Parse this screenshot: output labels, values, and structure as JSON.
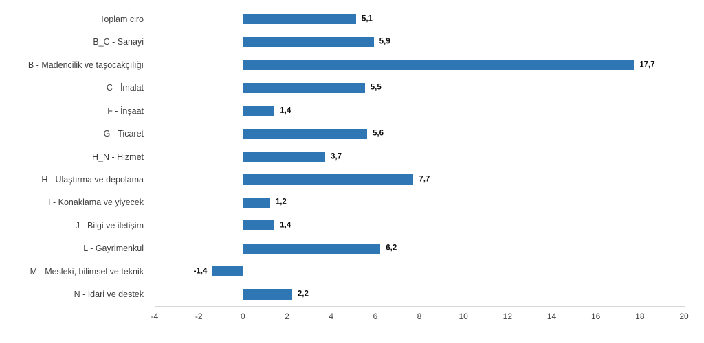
{
  "chart": {
    "background_color": "#ffffff",
    "bar_color": "#2f76b5",
    "axis_line_color": "#d9d9d9",
    "category_label_color": "#3f3f3f",
    "tick_label_color": "#454545",
    "value_label_color": "#0d0d0d"
  },
  "chart_data": {
    "type": "bar",
    "orientation": "horizontal",
    "title": "",
    "xlabel": "",
    "ylabel": "",
    "grid": false,
    "legend": false,
    "categories": [
      "Toplam ciro",
      "B_C - Sanayi",
      "B - Madencilik ve taşocakçılığı",
      "C - İmalat",
      "F - İnşaat",
      "G - Ticaret",
      "H_N - Hizmet",
      "H - Ulaştırma ve depolama",
      "I - Konaklama ve yiyecek",
      "J - Bilgi ve iletişim",
      "L - Gayrimenkul",
      "M - Mesleki, bilimsel ve teknik",
      "N - İdari ve destek"
    ],
    "values": [
      5.1,
      5.9,
      17.7,
      5.5,
      1.4,
      5.6,
      3.7,
      7.7,
      1.2,
      1.4,
      6.2,
      -1.4,
      2.2
    ],
    "value_labels": [
      "5,1",
      "5,9",
      "17,7",
      "5,5",
      "1,4",
      "5,6",
      "3,7",
      "7,7",
      "1,2",
      "1,4",
      "6,2",
      "-1,4",
      "2,2"
    ],
    "xlim": [
      -4,
      20
    ],
    "xticks": [
      -4,
      -2,
      0,
      2,
      4,
      6,
      8,
      10,
      12,
      14,
      16,
      18,
      20
    ]
  }
}
